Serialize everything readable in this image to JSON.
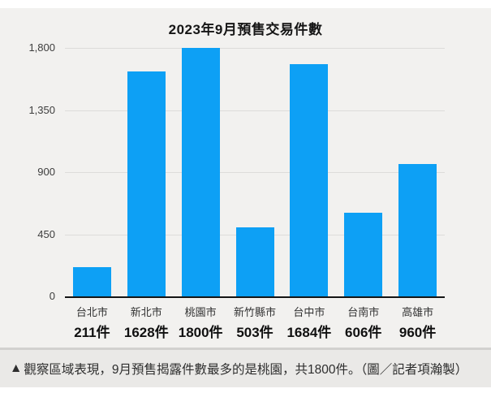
{
  "page": {
    "background": "#ffffff",
    "figure_background": "#f2f1ef",
    "caption_background": "#eae9e7",
    "divider_color": "#d2d1cf"
  },
  "chart_data": {
    "type": "bar",
    "title": "2023年9月預售交易件數",
    "categories": [
      "台北市",
      "新北市",
      "桃園市",
      "新竹縣市",
      "台中市",
      "台南市",
      "高雄市"
    ],
    "values": [
      211,
      1628,
      1800,
      503,
      1684,
      606,
      960
    ],
    "value_labels": [
      "211件",
      "1628件",
      "1800件",
      "503件",
      "1684件",
      "606件",
      "960件"
    ],
    "xlabel": "",
    "ylabel": "",
    "ylim": [
      0,
      1800
    ],
    "y_ticks": [
      0,
      450,
      900,
      1350,
      1800
    ],
    "y_tick_labels": [
      "0",
      "450",
      "900",
      "1,350",
      "1,800"
    ],
    "grid": true,
    "legend": "none",
    "bar_color": "#0da0f5",
    "axis_color": "#151515",
    "gridline_color": "#dddcda"
  },
  "caption": {
    "marker": "▲",
    "text": "觀察區域表現，9月預售揭露件數最多的是桃園，共1800件。（圖／記者項瀚製）"
  }
}
